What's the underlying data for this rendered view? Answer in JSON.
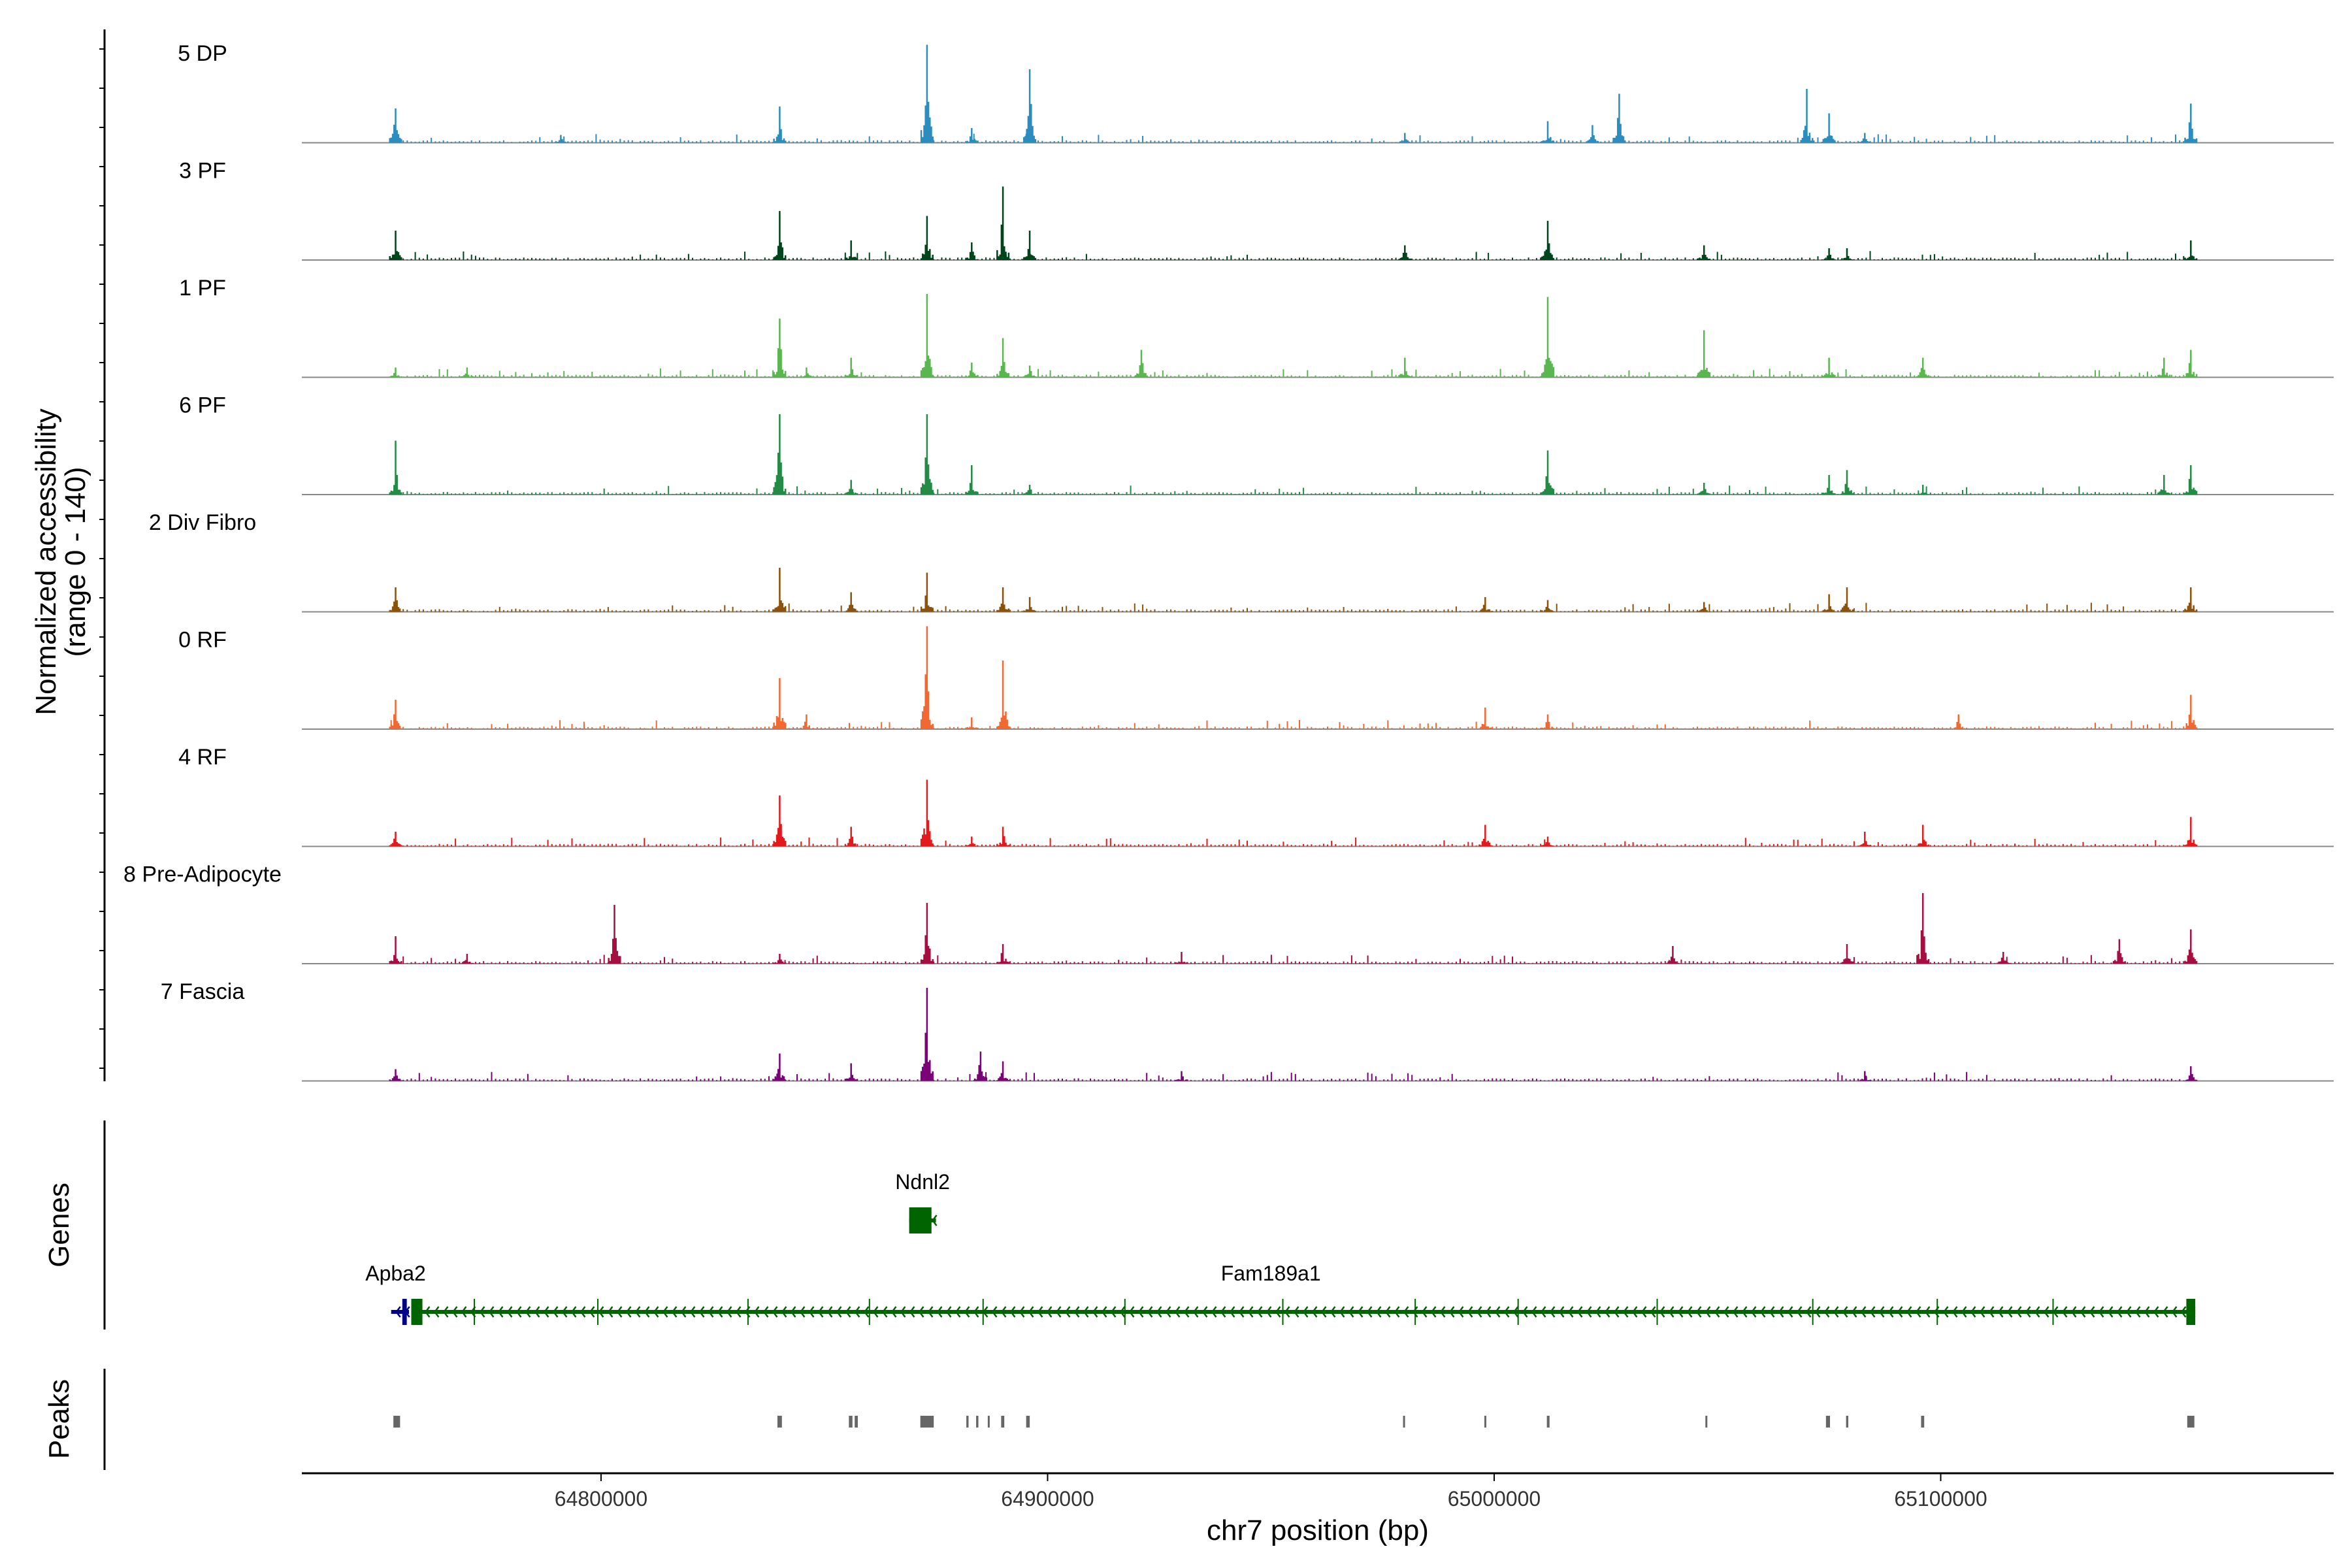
{
  "chart_data": {
    "type": "genome_coverage",
    "coverage": {
      "ylabel_line1": "Normalized accessibility",
      "ylabel_line2": "(range 0 - 140)",
      "ylim": [
        0,
        140
      ],
      "tracks": [
        {
          "name": "5 DP",
          "color": "#2b8cbe",
          "peaks": [
            [
              64754000,
              0.35
            ],
            [
              64840000,
              0.37
            ],
            [
              64873000,
              1.0
            ],
            [
              64896000,
              0.75
            ],
            [
              64883000,
              0.15
            ],
            [
              64980000,
              0.1
            ],
            [
              65012000,
              0.22
            ],
            [
              65022000,
              0.18
            ],
            [
              65028000,
              0.5
            ],
            [
              65070000,
              0.55
            ],
            [
              65075000,
              0.3
            ],
            [
              65083000,
              0.1
            ],
            [
              65156000,
              0.4
            ],
            [
              64791000,
              0.08
            ]
          ]
        },
        {
          "name": "3 PF",
          "color": "#00441b",
          "peaks": [
            [
              64754000,
              0.3
            ],
            [
              64840000,
              0.5
            ],
            [
              64856000,
              0.2
            ],
            [
              64873000,
              0.45
            ],
            [
              64890000,
              0.75
            ],
            [
              64896000,
              0.3
            ],
            [
              64883000,
              0.18
            ],
            [
              64980000,
              0.15
            ],
            [
              65012000,
              0.4
            ],
            [
              65047000,
              0.15
            ],
            [
              65075000,
              0.12
            ],
            [
              65079000,
              0.12
            ],
            [
              65156000,
              0.2
            ]
          ]
        },
        {
          "name": "1 PF",
          "color": "#5ab64f",
          "peaks": [
            [
              64754000,
              0.1
            ],
            [
              64770000,
              0.1
            ],
            [
              64840000,
              0.6
            ],
            [
              64846000,
              0.1
            ],
            [
              64856000,
              0.2
            ],
            [
              64873000,
              0.85
            ],
            [
              64883000,
              0.15
            ],
            [
              64890000,
              0.4
            ],
            [
              64896000,
              0.12
            ],
            [
              64921000,
              0.28
            ],
            [
              64980000,
              0.2
            ],
            [
              65012000,
              0.82
            ],
            [
              65047000,
              0.48
            ],
            [
              65075000,
              0.2
            ],
            [
              65096000,
              0.2
            ],
            [
              65150000,
              0.2
            ],
            [
              65156000,
              0.28
            ]
          ]
        },
        {
          "name": "6 PF",
          "color": "#238b45",
          "peaks": [
            [
              64754000,
              0.55
            ],
            [
              64840000,
              0.82
            ],
            [
              64856000,
              0.15
            ],
            [
              64873000,
              0.82
            ],
            [
              64883000,
              0.3
            ],
            [
              64896000,
              0.1
            ],
            [
              65012000,
              0.45
            ],
            [
              65047000,
              0.12
            ],
            [
              65075000,
              0.2
            ],
            [
              65079000,
              0.25
            ],
            [
              65096000,
              0.1
            ],
            [
              65150000,
              0.2
            ],
            [
              65156000,
              0.3
            ]
          ]
        },
        {
          "name": "2 Div Fibro",
          "color": "#8c510a",
          "peaks": [
            [
              64754000,
              0.25
            ],
            [
              64840000,
              0.45
            ],
            [
              64856000,
              0.2
            ],
            [
              64873000,
              0.4
            ],
            [
              64890000,
              0.25
            ],
            [
              64896000,
              0.15
            ],
            [
              64998000,
              0.15
            ],
            [
              65012000,
              0.12
            ],
            [
              65047000,
              0.1
            ],
            [
              65075000,
              0.18
            ],
            [
              65079000,
              0.25
            ],
            [
              65156000,
              0.25
            ]
          ]
        },
        {
          "name": "0 RF",
          "color": "#f16932",
          "peaks": [
            [
              64754000,
              0.3
            ],
            [
              64840000,
              0.52
            ],
            [
              64846000,
              0.15
            ],
            [
              64873000,
              1.05
            ],
            [
              64890000,
              0.7
            ],
            [
              64883000,
              0.12
            ],
            [
              64998000,
              0.22
            ],
            [
              65012000,
              0.15
            ],
            [
              65104000,
              0.15
            ],
            [
              65156000,
              0.35
            ]
          ]
        },
        {
          "name": "4 RF",
          "color": "#e31a1c",
          "peaks": [
            [
              64754000,
              0.15
            ],
            [
              64840000,
              0.52
            ],
            [
              64856000,
              0.2
            ],
            [
              64873000,
              0.68
            ],
            [
              64883000,
              0.1
            ],
            [
              64890000,
              0.2
            ],
            [
              64998000,
              0.22
            ],
            [
              65012000,
              0.1
            ],
            [
              65083000,
              0.15
            ],
            [
              65096000,
              0.22
            ],
            [
              65156000,
              0.3
            ]
          ]
        },
        {
          "name": "8 Pre-Adipocyte",
          "color": "#a50f40",
          "peaks": [
            [
              64754000,
              0.28
            ],
            [
              64770000,
              0.1
            ],
            [
              64803000,
              0.6
            ],
            [
              64840000,
              0.1
            ],
            [
              64873000,
              0.62
            ],
            [
              64890000,
              0.2
            ],
            [
              64930000,
              0.12
            ],
            [
              65040000,
              0.18
            ],
            [
              65079000,
              0.2
            ],
            [
              65096000,
              0.72
            ],
            [
              65114000,
              0.12
            ],
            [
              65140000,
              0.25
            ],
            [
              65156000,
              0.35
            ]
          ]
        },
        {
          "name": "7 Fascia",
          "color": "#7a0177",
          "peaks": [
            [
              64754000,
              0.12
            ],
            [
              64840000,
              0.28
            ],
            [
              64856000,
              0.18
            ],
            [
              64873000,
              0.95
            ],
            [
              64885000,
              0.3
            ],
            [
              64890000,
              0.2
            ],
            [
              64930000,
              0.1
            ],
            [
              65083000,
              0.1
            ],
            [
              65156000,
              0.15
            ]
          ]
        }
      ]
    },
    "genes": {
      "ylabel": "Genes",
      "items": [
        {
          "name": "Ndnl2",
          "start": 64869000,
          "end": 64875000,
          "strand": "-",
          "color": "#006400",
          "row": 1,
          "exons": [
            [
              64869000,
              64874000
            ]
          ]
        },
        {
          "name": "Apba2",
          "start": 64753000,
          "end": 64757000,
          "strand": "-",
          "color": "#00008b",
          "row": 2,
          "exons": [
            [
              64755500,
              64756500
            ]
          ]
        },
        {
          "name": "Fam189a1",
          "start": 64757500,
          "end": 65157000,
          "strand": "-",
          "color": "#006400",
          "row": 2,
          "exons": [
            [
              64757500,
              64760000
            ],
            [
              65155000,
              65157000
            ]
          ]
        }
      ]
    },
    "peaks_track": {
      "ylabel": "Peaks",
      "color": "#666666",
      "regions": [
        [
          64753500,
          64755000
        ],
        [
          64839500,
          64840500
        ],
        [
          64855500,
          64856300
        ],
        [
          64856800,
          64857500
        ],
        [
          64871500,
          64874500
        ],
        [
          64881800,
          64882300
        ],
        [
          64884000,
          64884500
        ],
        [
          64886600,
          64887000
        ],
        [
          64889600,
          64890300
        ],
        [
          64895200,
          64896000
        ],
        [
          64979600,
          64980000
        ],
        [
          64997800,
          64998200
        ],
        [
          65011800,
          65012400
        ],
        [
          65047300,
          65047700
        ],
        [
          65074300,
          65075200
        ],
        [
          65078800,
          65079300
        ],
        [
          65095600,
          65096300
        ],
        [
          65155200,
          65156800
        ]
      ]
    },
    "x_axis": {
      "label": "chr7 position (bp)",
      "xlim": [
        64733000,
        65188000
      ],
      "ticks": [
        64800000,
        64900000,
        65000000,
        65100000
      ],
      "tick_labels": [
        "64800000",
        "64900000",
        "65000000",
        "65100000"
      ]
    }
  }
}
